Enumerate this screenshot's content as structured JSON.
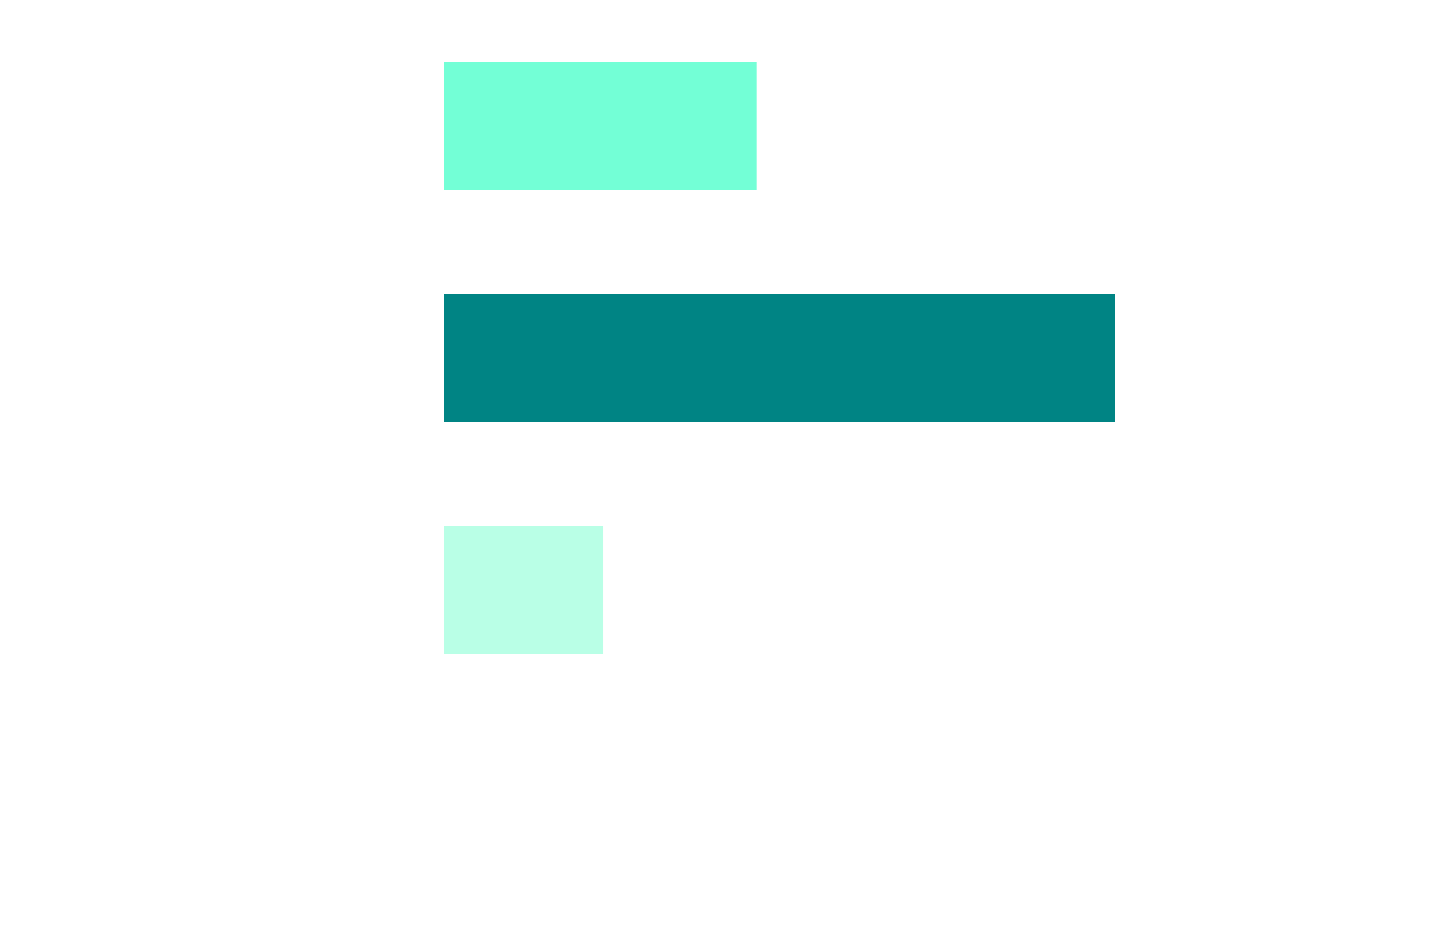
{
  "chart_data": {
    "type": "bar",
    "orientation": "horizontal",
    "categories": [
      "",
      "",
      ""
    ],
    "values": [
      0.466,
      1.0,
      0.237
    ],
    "xlim": [
      0,
      1.0
    ],
    "grid": false,
    "axes_visible": false,
    "bar_colors": [
      "#73ffd6",
      "#008484",
      "#b9ffe6"
    ]
  }
}
